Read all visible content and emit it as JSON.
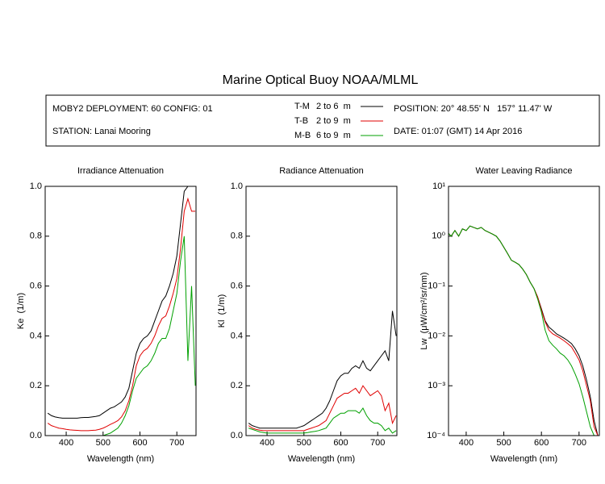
{
  "title": "Marine Optical Buoy NOAA/MLML",
  "info": {
    "deployment": "MOBY2 DEPLOYMENT: 60 CONFIG: 01",
    "station": "STATION: Lanai Mooring",
    "position": "POSITION: 20° 48.55' N   157° 11.47' W",
    "date": "DATE: 01:07 (GMT) 14 Apr 2016"
  },
  "legend": [
    {
      "name": "T-M",
      "depth": "2 to 6  m"
    },
    {
      "name": "T-B",
      "depth": "2 to 9  m"
    },
    {
      "name": "M-B",
      "depth": "6 to 9  m"
    }
  ],
  "chart_data": [
    {
      "type": "line",
      "title": "Irradiance Attenuation",
      "x_label": "Wavelength (nm)",
      "y_label": "Ke  (1/m)",
      "xlim": [
        343,
        752
      ],
      "xticks": [
        400,
        500,
        600,
        700
      ],
      "ylim": [
        0,
        1
      ],
      "yticks": [
        {
          "value": 0,
          "label": "0.0"
        },
        0.2,
        0.4,
        0.6,
        0.8,
        {
          "value": 1,
          "label": "1.0"
        }
      ],
      "x": [
        350,
        360,
        370,
        380,
        390,
        400,
        410,
        420,
        430,
        440,
        450,
        460,
        470,
        480,
        490,
        500,
        510,
        520,
        530,
        540,
        550,
        560,
        570,
        580,
        590,
        600,
        610,
        620,
        630,
        640,
        650,
        660,
        670,
        680,
        690,
        700,
        710,
        720,
        730,
        740,
        750
      ],
      "series": [
        {
          "color": "#000000",
          "values": [
            0.09,
            0.08,
            0.075,
            0.072,
            0.07,
            0.07,
            0.07,
            0.07,
            0.07,
            0.072,
            0.073,
            0.073,
            0.075,
            0.077,
            0.08,
            0.09,
            0.1,
            0.11,
            0.115,
            0.125,
            0.135,
            0.155,
            0.19,
            0.26,
            0.33,
            0.37,
            0.39,
            0.4,
            0.42,
            0.46,
            0.5,
            0.54,
            0.56,
            0.6,
            0.65,
            0.72,
            0.85,
            0.98,
            1.0,
            1.0,
            1.0
          ]
        },
        {
          "color": "#e00000",
          "values": [
            0.05,
            0.04,
            0.035,
            0.03,
            0.028,
            0.025,
            0.023,
            0.022,
            0.021,
            0.02,
            0.02,
            0.02,
            0.021,
            0.022,
            0.025,
            0.03,
            0.037,
            0.045,
            0.052,
            0.06,
            0.075,
            0.1,
            0.14,
            0.2,
            0.28,
            0.32,
            0.34,
            0.35,
            0.37,
            0.4,
            0.44,
            0.47,
            0.48,
            0.52,
            0.57,
            0.63,
            0.75,
            0.9,
            0.95,
            0.9,
            0.9
          ]
        },
        {
          "color": "#00a000",
          "values": [
            0,
            0,
            0,
            0,
            0,
            0,
            0,
            0,
            0,
            0,
            0,
            0,
            0,
            0,
            0,
            0,
            0.005,
            0.01,
            0.02,
            0.03,
            0.05,
            0.08,
            0.12,
            0.18,
            0.23,
            0.25,
            0.27,
            0.28,
            0.3,
            0.33,
            0.37,
            0.39,
            0.39,
            0.43,
            0.5,
            0.57,
            0.7,
            0.8,
            0.3,
            0.6,
            0.2
          ]
        }
      ]
    },
    {
      "type": "line",
      "title": "Radiance Attenuation",
      "x_label": "Wavelength (nm)",
      "y_label": "Kl  (1/m)",
      "xlim": [
        343,
        752
      ],
      "xticks": [
        400,
        500,
        600,
        700
      ],
      "ylim": [
        0,
        1
      ],
      "yticks": [
        {
          "value": 0,
          "label": "0.0"
        },
        0.2,
        0.4,
        0.6,
        0.8,
        {
          "value": 1,
          "label": "1.0"
        }
      ],
      "x": [
        350,
        360,
        370,
        380,
        390,
        400,
        410,
        420,
        430,
        440,
        450,
        460,
        470,
        480,
        490,
        500,
        510,
        520,
        530,
        540,
        550,
        560,
        570,
        580,
        590,
        600,
        610,
        620,
        630,
        640,
        650,
        660,
        670,
        680,
        690,
        700,
        710,
        720,
        730,
        740,
        750
      ],
      "series": [
        {
          "color": "#000000",
          "values": [
            0.05,
            0.04,
            0.035,
            0.03,
            0.03,
            0.03,
            0.03,
            0.03,
            0.03,
            0.03,
            0.03,
            0.03,
            0.03,
            0.03,
            0.035,
            0.04,
            0.05,
            0.06,
            0.07,
            0.08,
            0.09,
            0.11,
            0.14,
            0.18,
            0.22,
            0.24,
            0.25,
            0.25,
            0.27,
            0.28,
            0.27,
            0.3,
            0.27,
            0.26,
            0.28,
            0.3,
            0.32,
            0.34,
            0.3,
            0.5,
            0.4
          ]
        },
        {
          "color": "#e00000",
          "values": [
            0.04,
            0.03,
            0.025,
            0.022,
            0.02,
            0.02,
            0.02,
            0.02,
            0.02,
            0.02,
            0.02,
            0.02,
            0.02,
            0.02,
            0.02,
            0.02,
            0.025,
            0.03,
            0.035,
            0.04,
            0.05,
            0.06,
            0.09,
            0.12,
            0.15,
            0.16,
            0.17,
            0.17,
            0.18,
            0.19,
            0.17,
            0.2,
            0.18,
            0.16,
            0.17,
            0.18,
            0.16,
            0.1,
            0.13,
            0.05,
            0.08
          ]
        },
        {
          "color": "#00a000",
          "values": [
            0.03,
            0.025,
            0.02,
            0.015,
            0.012,
            0.01,
            0.01,
            0.01,
            0.01,
            0.01,
            0.01,
            0.01,
            0.01,
            0.01,
            0.01,
            0.01,
            0.012,
            0.015,
            0.017,
            0.02,
            0.025,
            0.03,
            0.05,
            0.07,
            0.08,
            0.09,
            0.09,
            0.1,
            0.1,
            0.1,
            0.09,
            0.11,
            0.08,
            0.06,
            0.05,
            0.05,
            0.04,
            0.02,
            0.03,
            0.01,
            0.02
          ]
        }
      ]
    },
    {
      "type": "line",
      "title": "Water Leaving Radiance",
      "x_label": "Wavelength (nm)",
      "y_label": "Lw  (μW/cm²/sr/nm)",
      "log_y": true,
      "xlim": [
        353,
        754
      ],
      "xticks": [
        400,
        500,
        600,
        700
      ],
      "ylim": [
        0.0001,
        10
      ],
      "yticks": [
        {
          "value": 10,
          "label": "10¹"
        },
        {
          "value": 1,
          "label": "10⁰"
        },
        {
          "value": 0.1,
          "label": "10⁻¹"
        },
        {
          "value": 0.01,
          "label": "10⁻²"
        },
        {
          "value": 0.001,
          "label": "10⁻³"
        },
        {
          "value": 0.0001,
          "label": "10⁻⁴"
        }
      ],
      "x": [
        350,
        360,
        370,
        380,
        390,
        400,
        410,
        420,
        430,
        440,
        450,
        460,
        470,
        480,
        490,
        500,
        510,
        520,
        530,
        540,
        550,
        560,
        570,
        580,
        590,
        600,
        610,
        620,
        630,
        640,
        650,
        660,
        670,
        680,
        690,
        700,
        710,
        720,
        730,
        740,
        750
      ],
      "series": [
        {
          "color": "#000000",
          "values": [
            1.2,
            1.0,
            1.3,
            1.0,
            1.4,
            1.3,
            1.6,
            1.5,
            1.4,
            1.5,
            1.3,
            1.2,
            1.1,
            1.0,
            0.8,
            0.6,
            0.45,
            0.33,
            0.3,
            0.27,
            0.22,
            0.17,
            0.12,
            0.09,
            0.06,
            0.035,
            0.02,
            0.015,
            0.013,
            0.011,
            0.01,
            0.009,
            0.008,
            0.007,
            0.0055,
            0.004,
            0.0025,
            0.0013,
            0.0006,
            0.0002,
            0.0001
          ]
        },
        {
          "color": "#e00000",
          "values": [
            1.2,
            1.0,
            1.3,
            1.0,
            1.4,
            1.3,
            1.6,
            1.5,
            1.4,
            1.5,
            1.3,
            1.2,
            1.1,
            1.0,
            0.8,
            0.6,
            0.45,
            0.33,
            0.3,
            0.27,
            0.22,
            0.17,
            0.12,
            0.09,
            0.06,
            0.033,
            0.019,
            0.013,
            0.011,
            0.01,
            0.009,
            0.008,
            0.007,
            0.006,
            0.0045,
            0.0033,
            0.002,
            0.001,
            0.0005,
            0.00015,
            0.0001
          ]
        },
        {
          "color": "#00a000",
          "values": [
            1.2,
            1.0,
            1.3,
            1.0,
            1.4,
            1.3,
            1.6,
            1.5,
            1.4,
            1.5,
            1.3,
            1.2,
            1.1,
            1.0,
            0.8,
            0.6,
            0.45,
            0.33,
            0.3,
            0.27,
            0.22,
            0.17,
            0.12,
            0.09,
            0.055,
            0.03,
            0.013,
            0.008,
            0.0065,
            0.0055,
            0.0045,
            0.004,
            0.0033,
            0.0025,
            0.0017,
            0.0011,
            0.0006,
            0.0003,
            0.00015,
            0.0001,
            null
          ]
        }
      ]
    }
  ]
}
